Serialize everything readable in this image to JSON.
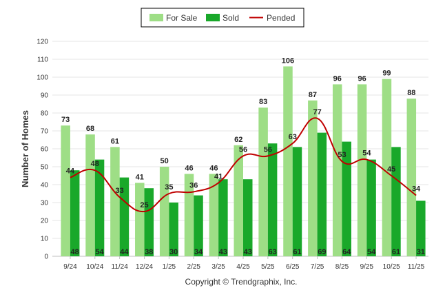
{
  "chart_data": {
    "type": "bar",
    "title": "",
    "xlabel": "",
    "ylabel": "Number of Homes",
    "ylim": [
      0,
      120
    ],
    "yticks": [
      0,
      10,
      20,
      30,
      40,
      50,
      60,
      70,
      80,
      90,
      100,
      110,
      120
    ],
    "grid": true,
    "legend_position": "top-center",
    "categories": [
      "9/24",
      "10/24",
      "11/24",
      "12/24",
      "1/25",
      "2/25",
      "3/25",
      "4/25",
      "5/25",
      "6/25",
      "7/25",
      "8/25",
      "9/25",
      "10/25",
      "11/25"
    ],
    "series": [
      {
        "name": "For Sale",
        "kind": "bar",
        "values": [
          73,
          68,
          61,
          41,
          50,
          46,
          46,
          62,
          83,
          106,
          87,
          96,
          96,
          99,
          88
        ]
      },
      {
        "name": "Sold",
        "kind": "bar",
        "values": [
          48,
          54,
          44,
          38,
          30,
          34,
          43,
          43,
          63,
          61,
          69,
          64,
          54,
          61,
          31
        ]
      },
      {
        "name": "Pended",
        "kind": "line",
        "values": [
          44,
          48,
          33,
          25,
          35,
          36,
          41,
          56,
          56,
          63,
          77,
          53,
          54,
          45,
          34
        ]
      }
    ],
    "colors": {
      "for_sale": "#9ede86",
      "sold": "#19a82a",
      "pended": "#c00000",
      "grid": "#e6e6e6"
    },
    "copyright": "Copyright © Trendgraphix, Inc."
  }
}
